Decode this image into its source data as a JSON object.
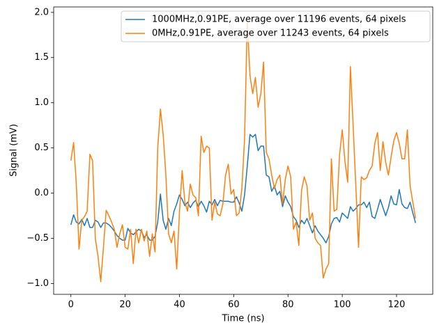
{
  "chart_data": {
    "type": "line",
    "xlabel": "Time (ns)",
    "ylabel": "Signal (mV)",
    "x": [
      0,
      1,
      2,
      3,
      4,
      5,
      6,
      7,
      8,
      9,
      10,
      11,
      12,
      13,
      14,
      15,
      16,
      17,
      18,
      19,
      20,
      21,
      22,
      23,
      24,
      25,
      26,
      27,
      28,
      29,
      30,
      31,
      32,
      33,
      34,
      35,
      36,
      37,
      38,
      39,
      40,
      41,
      42,
      43,
      44,
      45,
      46,
      47,
      48,
      49,
      50,
      51,
      52,
      53,
      54,
      55,
      56,
      57,
      58,
      59,
      60,
      61,
      62,
      63,
      64,
      65,
      66,
      67,
      68,
      69,
      70,
      71,
      72,
      73,
      74,
      75,
      76,
      77,
      78,
      79,
      80,
      81,
      82,
      83,
      84,
      85,
      86,
      87,
      88,
      89,
      90,
      91,
      92,
      93,
      94,
      95,
      96,
      97,
      98,
      99,
      100,
      101,
      102,
      103,
      104,
      105,
      106,
      107,
      108,
      109,
      110,
      111,
      112,
      113,
      114,
      115,
      116,
      117,
      118,
      119,
      120,
      121,
      122,
      123,
      124,
      125,
      126,
      127
    ],
    "series": [
      {
        "name": "1000MHz,0.91PE, average over 11196 events, 64 pixels",
        "color": "#1f77b4",
        "values": [
          -0.35,
          -0.24,
          -0.32,
          -0.34,
          -0.29,
          -0.36,
          -0.28,
          -0.38,
          -0.38,
          -0.3,
          -0.32,
          -0.38,
          -0.33,
          -0.33,
          -0.35,
          -0.38,
          -0.42,
          -0.47,
          -0.5,
          -0.52,
          -0.52,
          -0.39,
          -0.44,
          -0.46,
          -0.43,
          -0.4,
          -0.42,
          -0.49,
          -0.46,
          -0.52,
          -0.52,
          -0.48,
          -0.32,
          -0.01,
          -0.3,
          -0.4,
          -0.28,
          -0.36,
          -0.2,
          -0.12,
          -0.02,
          -0.07,
          -0.14,
          -0.1,
          -0.16,
          -0.11,
          -0.08,
          -0.15,
          -0.09,
          -0.14,
          -0.21,
          -0.09,
          -0.13,
          -0.07,
          -0.14,
          -0.08,
          -0.09,
          -0.09,
          -0.09,
          -0.1,
          -0.1,
          -0.04,
          -0.11,
          -0.2,
          -0.02,
          0.3,
          0.65,
          0.62,
          0.65,
          0.47,
          0.52,
          0.52,
          0.2,
          0.18,
          0.02,
          0.08,
          -0.02,
          0.02,
          -0.15,
          -0.03,
          -0.1,
          -0.15,
          -0.26,
          -0.3,
          -0.38,
          -0.3,
          -0.34,
          -0.28,
          -0.36,
          -0.44,
          -0.36,
          -0.42,
          -0.46,
          -0.5,
          -0.55,
          -0.48,
          -0.34,
          -0.28,
          -0.27,
          -0.32,
          -0.22,
          -0.25,
          -0.28,
          -0.15,
          -0.2,
          -0.17,
          -0.13,
          -0.13,
          -0.1,
          -0.16,
          -0.1,
          -0.26,
          -0.28,
          -0.18,
          -0.07,
          -0.16,
          -0.25,
          -0.16,
          -0.03,
          -0.12,
          -0.13,
          0.04,
          -0.12,
          -0.16,
          -0.17,
          -0.1,
          -0.22,
          -0.33
        ]
      },
      {
        "name": "0MHz,0.91PE, average over 11243 events, 64 pixels",
        "color": "#ff7f0e",
        "values": [
          0.36,
          0.56,
          0.1,
          -0.62,
          -0.3,
          -0.26,
          -0.2,
          0.43,
          0.36,
          -0.5,
          -0.7,
          -0.98,
          -0.6,
          -0.19,
          -0.25,
          -0.32,
          -0.4,
          -0.6,
          -0.45,
          -0.35,
          -0.6,
          -0.62,
          -0.4,
          -0.78,
          -0.4,
          -0.55,
          -0.4,
          -0.53,
          -0.42,
          -0.7,
          -0.45,
          -0.65,
          0.5,
          0.93,
          0.65,
          0.2,
          -0.45,
          -0.55,
          -0.42,
          -0.84,
          -0.22,
          0.25,
          -0.1,
          -0.2,
          0.1,
          -0.02,
          -0.05,
          -0.25,
          0.63,
          0.45,
          0.52,
          0.5,
          -0.3,
          -0.1,
          -0.23,
          -0.25,
          -0.12,
          0.2,
          0.32,
          -0.01,
          0.04,
          -0.25,
          -0.22,
          0.05,
          0.6,
          1.9,
          1.3,
          1.1,
          1.28,
          0.95,
          1.1,
          1.45,
          0.45,
          0.38,
          0.2,
          0.05,
          0.15,
          0.2,
          -0.12,
          0.15,
          0.3,
          0.18,
          -0.4,
          -0.32,
          -0.58,
          0.03,
          0.18,
          0.08,
          -0.3,
          -0.22,
          -0.5,
          -0.55,
          -0.58,
          -0.94,
          -0.84,
          -0.78,
          0.38,
          -0.2,
          -0.18,
          0.42,
          0.7,
          0.35,
          0.12,
          1.4,
          0.75,
          0.08,
          -0.6,
          0.18,
          0.15,
          0.17,
          0.25,
          0.3,
          0.55,
          0.67,
          0.25,
          0.57,
          0.34,
          0.2,
          0.4,
          0.58,
          0.67,
          0.55,
          0.38,
          0.38,
          0.7,
          0.08,
          -0.1,
          -0.28
        ]
      }
    ],
    "xlim": [
      -6.35,
      133.35
    ],
    "xticks": [
      0,
      20,
      40,
      60,
      80,
      100,
      120
    ],
    "ylim": [
      -1.12,
      2.06
    ],
    "yticks": [
      {
        "value": -1,
        "label": "−1.0"
      },
      {
        "value": -0.5,
        "label": "−0.5"
      },
      {
        "value": 0,
        "label": "0.0"
      },
      {
        "value": 0.5,
        "label": "0.5"
      },
      {
        "value": 1,
        "label": "1.0"
      },
      {
        "value": 1.5,
        "label": "1.5"
      },
      {
        "value": 2,
        "label": "2.0"
      }
    ],
    "legend": "upper right",
    "grid": false
  }
}
